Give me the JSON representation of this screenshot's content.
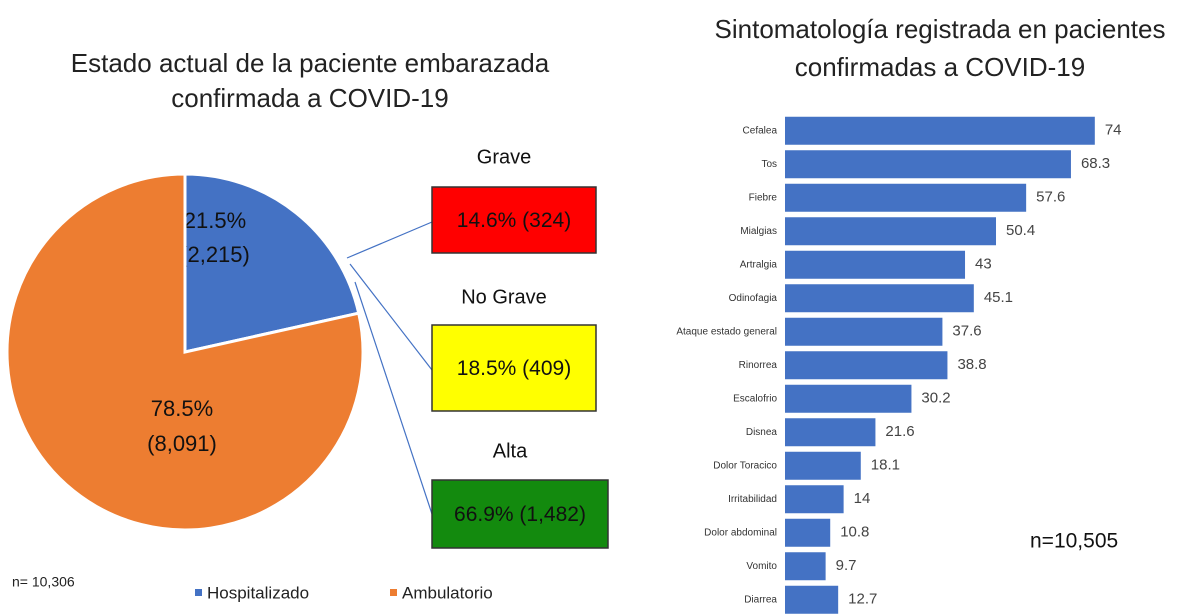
{
  "chart_data": [
    {
      "type": "pie",
      "title": "Estado actual de la paciente embarazada confirmada a COVID-19",
      "categories": [
        "Hospitalizado",
        "Ambulatorio"
      ],
      "values": [
        21.5,
        78.5
      ],
      "value_labels": [
        "21.5%",
        "78.5%"
      ],
      "count_labels": [
        "(2,215)",
        "(8,091)"
      ],
      "colors": [
        "#4472c4",
        "#ed7d31"
      ],
      "note": "n= 10,306",
      "breakdown": {
        "categories": [
          "Grave",
          "No Grave",
          "Alta"
        ],
        "values": [
          14.6,
          18.5,
          66.9
        ],
        "value_labels": [
          "14.6% (324)",
          "18.5% (409)",
          "66.9% (1,482)"
        ],
        "colors": [
          "#ff0000",
          "#ffff00",
          "#138a0e"
        ]
      }
    },
    {
      "type": "barh",
      "title": "Sintomatología registrada en pacientes confirmadas a COVID-19",
      "categories": [
        "Cefalea",
        "Tos",
        "Fiebre",
        "Mialgias",
        "Artralgia",
        "Odinofagia",
        "Ataque estado general",
        "Rinorrea",
        "Escalofrio",
        "Disnea",
        "Dolor Toracico",
        "Irritabilidad",
        "Dolor abdominal",
        "Vomito",
        "Diarrea"
      ],
      "values": [
        74,
        68.3,
        57.6,
        50.4,
        43,
        45.1,
        37.6,
        38.8,
        30.2,
        21.6,
        18.1,
        14,
        10.8,
        9.7,
        12.7
      ],
      "color": "#4472c4",
      "xlim": [
        0,
        75
      ],
      "note": "n=10,505"
    }
  ]
}
